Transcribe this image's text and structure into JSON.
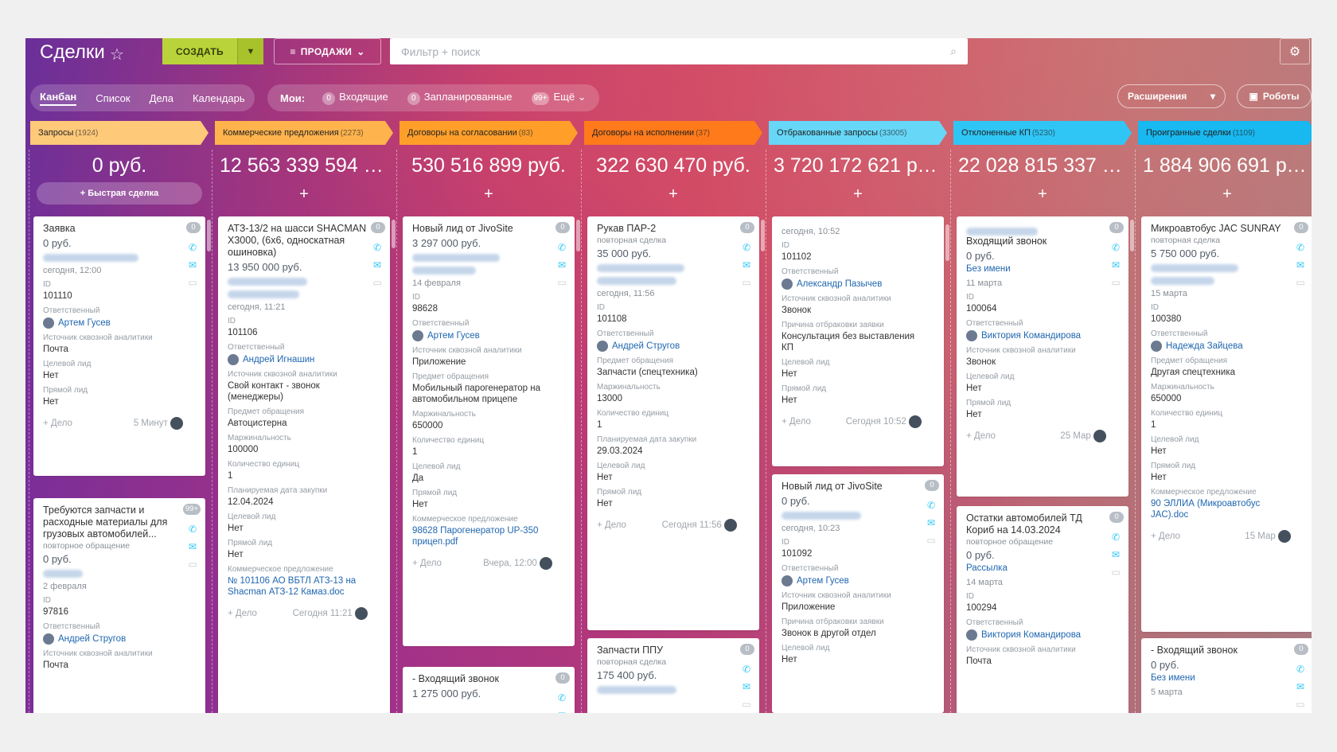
{
  "topbar": {
    "title": "Сделки",
    "create": "СОЗДАТЬ",
    "sales": "ПРОДАЖИ",
    "search_placeholder": "Фильтр + поиск"
  },
  "tabs": [
    "Канбан",
    "Список",
    "Дела",
    "Календарь"
  ],
  "mine": {
    "label": "Мои:",
    "incoming_count": "0",
    "incoming": "Входящие",
    "planned_count": "0",
    "planned": "Запланированные",
    "more_count": "99+",
    "more": "Ещё"
  },
  "extensions": "Расширения",
  "robots": "Роботы",
  "quick_deal": "+ Быстрая сделка",
  "columns": [
    {
      "name": "Запросы",
      "count": "(1924)",
      "sum": "0 руб.",
      "color": "#ffc97a"
    },
    {
      "name": "Коммерческие предложения",
      "count": "(2273)",
      "sum": "12 563 339 594 ру...",
      "color": "#ffb34d"
    },
    {
      "name": "Договоры на согласовании",
      "count": "(83)",
      "sum": "530 516 899 руб.",
      "color": "#ff9f2a"
    },
    {
      "name": "Договоры на исполнении",
      "count": "(37)",
      "sum": "322 630 470 руб.",
      "color": "#ff7a1a"
    },
    {
      "name": "Отбракованные запросы",
      "count": "(33005)",
      "sum": "3 720 172 621 руб.",
      "color": "#66d7f7"
    },
    {
      "name": "Отклоненные КП",
      "count": "(5230)",
      "sum": "22 028 815 337 руб.",
      "color": "#2fc6f6"
    },
    {
      "name": "Проигранные сделки",
      "count": "(1109)",
      "sum": "1 884 906 691 руб.",
      "color": "#18b8f0"
    }
  ],
  "labels": {
    "id": "ID",
    "resp": "Ответственный",
    "source": "Источник сквозной аналитики",
    "target": "Целевой лид",
    "direct": "Прямой лид",
    "subject": "Предмет обращения",
    "margin": "Маржинальность",
    "qty": "Количество единиц",
    "plan_date": "Планируемая дата закупки",
    "offer": "Коммерческое предложение",
    "reject": "Причина отбраковки заявки",
    "add": "+ Дело",
    "no": "Нет",
    "yes": "Да"
  },
  "cards": {
    "c1": {
      "title": "Заявка",
      "price": "0 руб.",
      "date": "сегодня, 12:00",
      "id": "101110",
      "user": "Артем Гусев",
      "source": "Почта",
      "time": "5 Минут",
      "badge": "0"
    },
    "c2": {
      "title": "Требуются запчасти и расходные материалы для грузовых автомобилей...",
      "sub": "повторное обращение",
      "price": "0 руб.",
      "date": "2 февраля",
      "id": "97816",
      "user": "Андрей Стругов",
      "source": "Почта",
      "badge": "99+"
    },
    "c3": {
      "title": "АТЗ-13/2 на шасси SHACMAN X3000, (6х6, односкатная ошиновка)",
      "price": "13 950 000 руб.",
      "date": "сегодня, 11:21",
      "id": "101106",
      "user": "Андрей Игнашин",
      "source": "Свой контакт - звонок (менеджеры)",
      "subject": "Автоцистерна",
      "margin": "100000",
      "qty": "1",
      "plan": "12.04.2024",
      "offer": "№ 101106 АО ВБТЛ АТЗ-13 на Shacman АТЗ-12 Камаз.doc",
      "time": "Сегодня 11:21",
      "badge": "0"
    },
    "c4": {
      "title": "Новый лид от JivoSite",
      "price": "3 297 000 руб.",
      "date": "14 февраля",
      "id": "98628",
      "user": "Артем Гусев",
      "source": "Приложение",
      "subject": "Мобильный парогенератор на автомобильном прицепе",
      "margin": "650000",
      "qty": "1",
      "offer": "98628 Парогенератор UP-350 прицеп.pdf",
      "time": "Вчера, 12:00",
      "badge": "0"
    },
    "c5": {
      "title": "- Входящий звонок",
      "price": "1 275 000 руб.",
      "badge": "0"
    },
    "c6": {
      "title": "Рукав ПАР-2",
      "sub": "повторная сделка",
      "price": "35 000 руб.",
      "date": "сегодня, 11:56",
      "id": "101108",
      "user": "Андрей Стругов",
      "subject": "Запчасти (спецтехника)",
      "margin": "13000",
      "qty": "1",
      "plan": "29.03.2024",
      "time": "Сегодня 11:56",
      "badge": "0"
    },
    "c7": {
      "title": "Запчасти ППУ",
      "sub": "повторная сделка",
      "price": "175 400 руб.",
      "badge": "0"
    },
    "c8": {
      "top": "сегодня, 10:52",
      "id": "101102",
      "user": "Александр Пазычев",
      "source": "Звонок",
      "reject": "Консультация без выставления КП",
      "time": "Сегодня 10:52"
    },
    "c9": {
      "title": "Новый лид от JivoSite",
      "price": "0 руб.",
      "date": "сегодня, 10:23",
      "id": "101092",
      "user": "Артем Гусев",
      "source": "Приложение",
      "reject": "Звонок в другой отдел",
      "badge": "0"
    },
    "c10": {
      "title": "Входящий звонок",
      "price": "0 руб.",
      "contact": "Без имени",
      "date": "11 марта",
      "id": "100064",
      "user": "Виктория Командирова",
      "source": "Звонок",
      "time": "25 Мар",
      "badge": "0"
    },
    "c11": {
      "title": "Остатки автомобилей ТД Кориб на 14.03.2024",
      "sub": "повторное обращение",
      "price": "0 руб.",
      "contact": "Рассылка",
      "date": "14 марта",
      "id": "100294",
      "user": "Виктория Командирова",
      "source": "Почта",
      "badge": "0"
    },
    "c12": {
      "title": "Микроавтобус JAC SUNRAY",
      "sub": "повторная сделка",
      "price": "5 750 000 руб.",
      "date": "15 марта",
      "id": "100380",
      "user": "Надежда Зайцева",
      "subject": "Другая спецтехника",
      "margin": "650000",
      "qty": "1",
      "offer": "90 ЭЛЛИА (Микроавтобус JAC).doc",
      "time": "15 Мар",
      "badge": "0"
    },
    "c13": {
      "title": "- Входящий звонок",
      "price": "0 руб.",
      "contact": "Без имени",
      "date": "5 марта",
      "badge": "0"
    }
  },
  "icons": [
    "star-icon",
    "filter-icon",
    "search-icon",
    "gear-icon",
    "phone-icon",
    "mail-icon",
    "chat-icon",
    "chevron-right-icon"
  ],
  "colors": {
    "create": "#bbd531",
    "link": "#2067b0",
    "accent_blue": "#2fc6f6"
  }
}
